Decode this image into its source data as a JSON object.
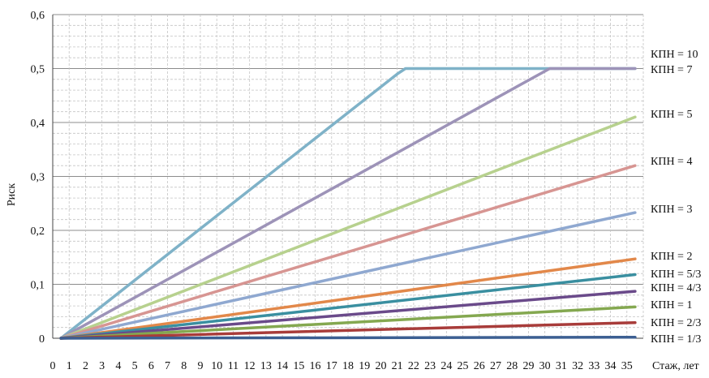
{
  "chart_data": {
    "type": "line",
    "xlabel": "Стаж, лет",
    "ylabel": "Риск",
    "xlim": [
      0,
      36
    ],
    "ylim": [
      0,
      0.6
    ],
    "x_ticks": [
      "0",
      "1",
      "2",
      "3",
      "4",
      "5",
      "6",
      "7",
      "8",
      "9",
      "10",
      "11",
      "12",
      "13",
      "14",
      "15",
      "16",
      "17",
      "18",
      "19",
      "20",
      "21",
      "22",
      "23",
      "24",
      "25",
      "26",
      "27",
      "28",
      "29",
      "30",
      "31",
      "32",
      "33",
      "34",
      "35"
    ],
    "y_ticks": [
      "0",
      "0,1",
      "0,2",
      "0,3",
      "0,4",
      "0,5",
      "0,6"
    ],
    "grid": true,
    "series": [
      {
        "name": "КПН = 10",
        "color": "#7fb2c8",
        "points": [
          [
            0.5,
            0
          ],
          [
            21,
            0.49
          ],
          [
            21.5,
            0.5
          ],
          [
            35.5,
            0.5
          ]
        ]
      },
      {
        "name": "КПН = 7",
        "color": "#9d93b8",
        "points": [
          [
            0.5,
            0
          ],
          [
            30.3,
            0.5
          ],
          [
            35.5,
            0.5
          ]
        ]
      },
      {
        "name": "КПН = 5",
        "color": "#b7d18e",
        "points": [
          [
            0.5,
            0
          ],
          [
            35.5,
            0.41
          ]
        ]
      },
      {
        "name": "КПН = 4",
        "color": "#d79592",
        "points": [
          [
            0.5,
            0
          ],
          [
            35.5,
            0.32
          ]
        ]
      },
      {
        "name": "КПН = 3",
        "color": "#8fa8d0",
        "points": [
          [
            0.5,
            0
          ],
          [
            35.5,
            0.233
          ]
        ]
      },
      {
        "name": "КПН = 2",
        "color": "#e2884a",
        "points": [
          [
            0.5,
            0
          ],
          [
            35.5,
            0.147
          ]
        ]
      },
      {
        "name": "КПН = 5/3",
        "color": "#3a8fa0",
        "points": [
          [
            0.5,
            0
          ],
          [
            35.5,
            0.118
          ]
        ]
      },
      {
        "name": "КПН = 4/3",
        "color": "#6a4a8a",
        "points": [
          [
            0.5,
            0
          ],
          [
            35.5,
            0.087
          ]
        ]
      },
      {
        "name": "КПН = 1",
        "color": "#84a850",
        "points": [
          [
            0.5,
            0
          ],
          [
            35.5,
            0.058
          ]
        ]
      },
      {
        "name": "КПН = 2/3",
        "color": "#a83c3a",
        "points": [
          [
            0.5,
            0
          ],
          [
            35.5,
            0.029
          ]
        ]
      },
      {
        "name": "КПН = 1/3",
        "color": "#3c5f92",
        "points": [
          [
            0.5,
            0
          ],
          [
            35.5,
            0.002
          ]
        ]
      }
    ]
  }
}
